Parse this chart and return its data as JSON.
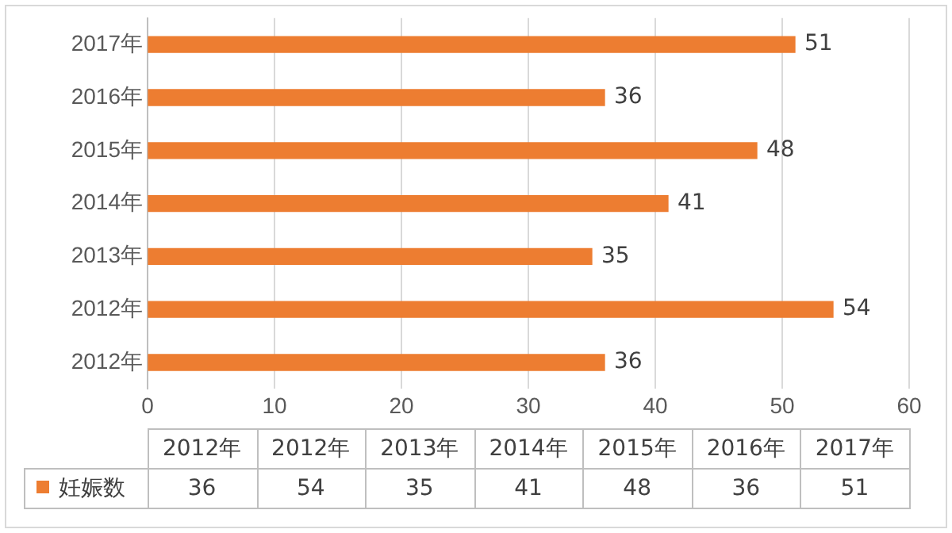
{
  "chart_data": [
    {
      "type": "bar",
      "orientation": "horizontal",
      "categories": [
        "2017年",
        "2016年",
        "2015年",
        "2014年",
        "2013年",
        "2012年",
        "2012年"
      ],
      "series": [
        {
          "color": "#ed7d31",
          "values": [
            51,
            36,
            48,
            41,
            35,
            54,
            36
          ]
        }
      ],
      "xlim": [
        0,
        60
      ],
      "xticks": [
        0,
        10,
        20,
        30,
        40,
        50,
        60
      ],
      "grid": "x",
      "data_labels": true
    },
    {
      "type": "heatmap",
      "categories": [
        "2012年",
        "2012年",
        "2013年",
        "2014年",
        "2015年",
        "2016年",
        "2017年"
      ],
      "y_categories": [
        "妊娠数"
      ],
      "cells": [
        [
          36,
          54,
          35,
          41,
          48,
          36,
          51
        ]
      ],
      "data_labels": true,
      "grid": true
    }
  ]
}
